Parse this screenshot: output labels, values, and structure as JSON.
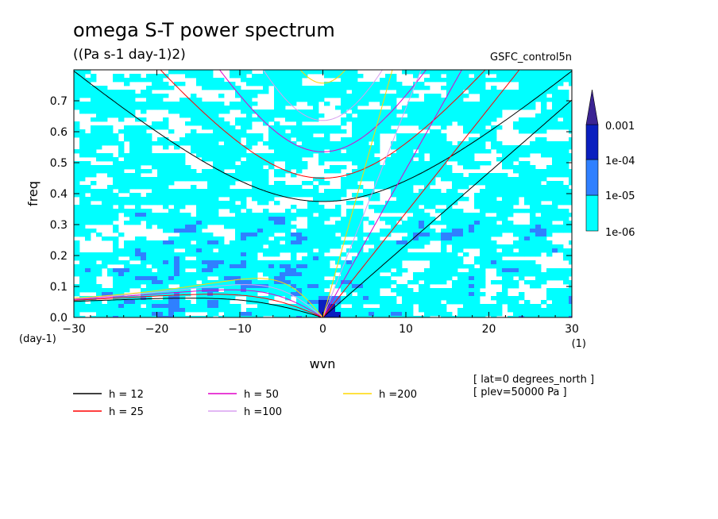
{
  "chart_data": {
    "type": "heatmap",
    "title": "omega S-T power spectrum",
    "subtitle": "((Pa s-1 day-1)2)",
    "experiment": "GSFC_control5n",
    "xlabel": "wvn",
    "ylabel": "freq",
    "x_unit": "(1)",
    "y_unit": "(day-1)",
    "xlim": [
      -30,
      30
    ],
    "ylim": [
      0,
      0.8
    ],
    "x_ticks": [
      "-30",
      "-20",
      "-10",
      "0",
      "10",
      "20",
      "30"
    ],
    "y_ticks": [
      "0.0",
      "0.1",
      "0.2",
      "0.3",
      "0.4",
      "0.5",
      "0.6",
      "0.7"
    ],
    "colorbar": {
      "labels": [
        "0.001",
        "1e-04",
        "1e-05",
        "1e-06"
      ],
      "levels": [
        1e-06,
        1e-05,
        0.0001,
        0.001
      ],
      "colors": [
        "#00ffff",
        "#2f80ff",
        "#0a1fbf",
        "#3b2493",
        "#4b0f86"
      ]
    },
    "dispersion_curves": [
      {
        "name": "h = 12",
        "h": 12,
        "color": "#000000"
      },
      {
        "name": "h = 25",
        "h": 25,
        "color": "#ff0000"
      },
      {
        "name": "h = 50",
        "h": 50,
        "color": "#e000c8"
      },
      {
        "name": "h =100",
        "h": 100,
        "color": "#d8a0f0"
      },
      {
        "name": "h =200",
        "h": 200,
        "color": "#ffd800"
      }
    ],
    "annotations": [
      "[ lat=0 degrees_north ]",
      "[ plev=50000 Pa ]"
    ]
  }
}
